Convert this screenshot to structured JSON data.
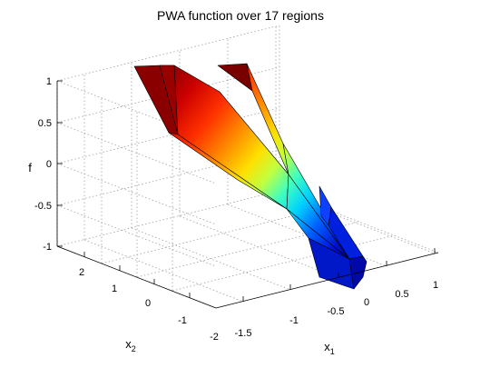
{
  "chart_data": {
    "type": "surface",
    "title": "PWA function over 17 regions",
    "xlabel": {
      "main": "x",
      "sub": "1"
    },
    "ylabel": {
      "main": "x",
      "sub": "2"
    },
    "zlabel": "f",
    "xlim": [
      -2,
      1.25
    ],
    "ylim": [
      -2.25,
      3
    ],
    "zlim": [
      -1,
      1
    ],
    "x_ticks": [
      "-1.5",
      "-1",
      "-0.5",
      "0",
      "0.5",
      "1"
    ],
    "y_ticks": [
      "-2",
      "-1",
      "0",
      "1",
      "2"
    ],
    "z_ticks": [
      "-1",
      "-0.5",
      "0",
      "0.5",
      "1"
    ],
    "grid": true,
    "colormap": "jet"
  }
}
